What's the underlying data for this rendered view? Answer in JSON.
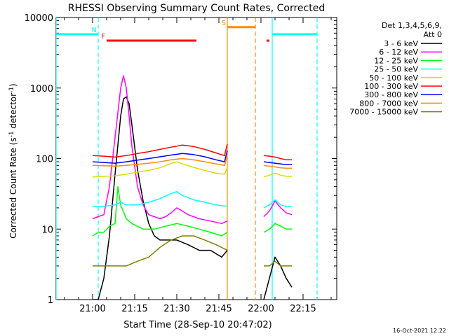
{
  "chart_data": {
    "type": "line",
    "title": "RHESSI Observing Summary Count Rates, Corrected",
    "xlabel": "Start Time (28-Sep-10 20:47:02)",
    "ylabel": "Corrected Count Rate (s",
    "ylabel_sup": "-1",
    "ylabel_mid": " detector",
    "ylabel_sup2": "-1",
    "ylabel_end": ")",
    "xscale": "linear",
    "yscale": "log",
    "xlim": [
      "20:47",
      "22:27"
    ],
    "ylim": [
      1,
      10000
    ],
    "xticks": [
      "21:00",
      "21:15",
      "21:30",
      "21:45",
      "22:00",
      "22:15"
    ],
    "yticks": [
      "1",
      "10",
      "100",
      "1000",
      "10000"
    ],
    "legend_header": [
      "Det 1,3,4,5,6,9,",
      "Att 0"
    ],
    "legend_position": "right",
    "footer_date": "16-Oct-2021 12:22",
    "series": [
      {
        "name": "3 - 6 keV",
        "color": "#000000",
        "x": [
          "21:00",
          "21:02",
          "21:04",
          "21:06",
          "21:08",
          "21:10",
          "21:11",
          "21:12",
          "21:13",
          "21:14",
          "21:16",
          "21:18",
          "21:20",
          "21:22",
          "21:24",
          "21:26",
          "21:30",
          "21:34",
          "21:38",
          "21:42",
          "21:46",
          "21:48"
        ],
        "y": [
          1,
          1,
          2,
          8,
          60,
          400,
          700,
          750,
          600,
          300,
          70,
          25,
          12,
          8,
          7,
          7,
          7,
          6,
          5,
          5,
          4,
          5
        ]
      },
      {
        "name": "3 - 6 keV",
        "color": "#000000",
        "x": [
          "22:01",
          "22:03",
          "22:05",
          "22:07",
          "22:09",
          "22:11"
        ],
        "y": [
          1,
          2,
          4,
          3,
          2,
          1.5
        ]
      },
      {
        "name": "6 - 12 keV",
        "color": "#ff00ff",
        "x": [
          "21:00",
          "21:02",
          "21:04",
          "21:06",
          "21:08",
          "21:10",
          "21:11",
          "21:12",
          "21:13",
          "21:14",
          "21:16",
          "21:18",
          "21:20",
          "21:22",
          "21:24",
          "21:26",
          "21:28",
          "21:30",
          "21:32",
          "21:34",
          "21:38",
          "21:42",
          "21:46",
          "21:48"
        ],
        "y": [
          14,
          15,
          16,
          40,
          200,
          1000,
          1500,
          1000,
          400,
          150,
          40,
          22,
          16,
          15,
          14,
          15,
          17,
          20,
          18,
          16,
          14,
          13,
          12,
          13
        ]
      },
      {
        "name": "6 - 12 keV",
        "color": "#ff00ff",
        "x": [
          "22:01",
          "22:03",
          "22:05",
          "22:07",
          "22:09",
          "22:11"
        ],
        "y": [
          15,
          18,
          25,
          20,
          17,
          16
        ]
      },
      {
        "name": "12 - 25 keV",
        "color": "#00ff00",
        "x": [
          "21:00",
          "21:02",
          "21:04",
          "21:06",
          "21:08",
          "21:09",
          "21:10",
          "21:12",
          "21:14",
          "21:18",
          "21:22",
          "21:26",
          "21:30",
          "21:34",
          "21:38",
          "21:42",
          "21:46",
          "21:48"
        ],
        "y": [
          8,
          9,
          9,
          11,
          12,
          40,
          22,
          14,
          12,
          10,
          10,
          11,
          12,
          11,
          10,
          9,
          8,
          9
        ]
      },
      {
        "name": "12 - 25 keV",
        "color": "#00ff00",
        "x": [
          "22:01",
          "22:03",
          "22:05",
          "22:07",
          "22:09",
          "22:11"
        ],
        "y": [
          9,
          10,
          12,
          11,
          10,
          10
        ]
      },
      {
        "name": "25 - 50 keV",
        "color": "#00ffff",
        "x": [
          "21:00",
          "21:04",
          "21:08",
          "21:10",
          "21:12",
          "21:16",
          "21:20",
          "21:24",
          "21:28",
          "21:30",
          "21:32",
          "21:36",
          "21:40",
          "21:44",
          "21:48"
        ],
        "y": [
          21,
          21,
          22,
          24,
          22,
          22,
          24,
          27,
          32,
          34,
          30,
          26,
          24,
          22,
          21
        ]
      },
      {
        "name": "25 - 50 keV",
        "color": "#00ffff",
        "x": [
          "22:01",
          "22:03",
          "22:05",
          "22:07",
          "22:09",
          "22:11"
        ],
        "y": [
          20,
          22,
          26,
          22,
          21,
          21
        ]
      },
      {
        "name": "50 - 100 keV",
        "color": "#dddd00",
        "x": [
          "21:00",
          "21:04",
          "21:08",
          "21:12",
          "21:16",
          "21:20",
          "21:24",
          "21:28",
          "21:30",
          "21:32",
          "21:36",
          "21:40",
          "21:44",
          "21:47",
          "21:48"
        ],
        "y": [
          55,
          56,
          57,
          60,
          64,
          68,
          74,
          85,
          90,
          84,
          75,
          68,
          62,
          60,
          75
        ]
      },
      {
        "name": "50 - 100 keV",
        "color": "#dddd00",
        "x": [
          "22:01",
          "22:03",
          "22:05",
          "22:07",
          "22:09",
          "22:11"
        ],
        "y": [
          55,
          58,
          62,
          58,
          56,
          56
        ]
      },
      {
        "name": "100 - 300 keV",
        "color": "#ff0000",
        "x": [
          "21:00",
          "21:04",
          "21:08",
          "21:12",
          "21:16",
          "21:20",
          "21:24",
          "21:28",
          "21:32",
          "21:36",
          "21:40",
          "21:44",
          "21:47",
          "21:48"
        ],
        "y": [
          110,
          108,
          105,
          110,
          118,
          125,
          135,
          145,
          155,
          148,
          135,
          120,
          110,
          160
        ]
      },
      {
        "name": "100 - 300 keV",
        "color": "#ff0000",
        "x": [
          "22:01",
          "22:03",
          "22:05",
          "22:07",
          "22:09",
          "22:11"
        ],
        "y": [
          110,
          108,
          105,
          100,
          96,
          96
        ]
      },
      {
        "name": "300 - 800 keV",
        "color": "#0000ff",
        "x": [
          "21:00",
          "21:04",
          "21:08",
          "21:12",
          "21:16",
          "21:20",
          "21:24",
          "21:28",
          "21:32",
          "21:36",
          "21:40",
          "21:44",
          "21:47",
          "21:48"
        ],
        "y": [
          90,
          88,
          86,
          90,
          95,
          100,
          106,
          112,
          118,
          114,
          106,
          96,
          90,
          130
        ]
      },
      {
        "name": "300 - 800 keV",
        "color": "#0000ff",
        "x": [
          "22:01",
          "22:03",
          "22:05",
          "22:07",
          "22:09",
          "22:11"
        ],
        "y": [
          90,
          88,
          86,
          84,
          82,
          82
        ]
      },
      {
        "name": "800 - 7000 keV",
        "color": "#ff8c00",
        "x": [
          "21:00",
          "21:04",
          "21:08",
          "21:12",
          "21:16",
          "21:20",
          "21:24",
          "21:28",
          "21:32",
          "21:36",
          "21:40",
          "21:44",
          "21:47",
          "21:48"
        ],
        "y": [
          80,
          79,
          78,
          80,
          83,
          86,
          90,
          96,
          100,
          96,
          90,
          84,
          80,
          110
        ]
      },
      {
        "name": "800 - 7000 keV",
        "color": "#ff8c00",
        "x": [
          "22:01",
          "22:03",
          "22:05",
          "22:07",
          "22:09",
          "22:11"
        ],
        "y": [
          80,
          78,
          76,
          74,
          73,
          73
        ]
      },
      {
        "name": "7000 - 15000 keV",
        "color": "#808000",
        "x": [
          "21:00",
          "21:04",
          "21:08",
          "21:12",
          "21:16",
          "21:20",
          "21:24",
          "21:28",
          "21:32",
          "21:36",
          "21:40",
          "21:44",
          "21:48"
        ],
        "y": [
          3,
          3,
          3,
          3,
          3.5,
          4,
          5.5,
          7,
          8,
          8,
          7,
          6,
          5
        ]
      },
      {
        "name": "7000 - 15000 keV",
        "color": "#808000",
        "x": [
          "22:01",
          "22:03",
          "22:05",
          "22:07",
          "22:09",
          "22:11"
        ],
        "y": [
          3,
          3,
          3.5,
          3,
          3,
          3
        ]
      }
    ],
    "vlines": [
      {
        "x": "20:47",
        "color": "#00ffff",
        "style": "solid"
      },
      {
        "x": "21:02",
        "color": "#00ffff",
        "style": "dashed"
      },
      {
        "x": "21:48",
        "color": "#ff8c00",
        "style": "solid"
      },
      {
        "x": "21:58",
        "color": "#ff8c00",
        "style": "dashed"
      },
      {
        "x": "22:04",
        "color": "#00ffff",
        "style": "solid"
      },
      {
        "x": "22:20",
        "color": "#00ffff",
        "style": "dashed"
      }
    ],
    "flag_bars": [
      {
        "label": "",
        "color": "#00ffff",
        "x0": "20:47",
        "x1": "21:02",
        "y": 5800
      },
      {
        "label": "N",
        "color": "#00ffff",
        "x0": "21:02",
        "x1": "21:02",
        "y": 5800
      },
      {
        "label": "",
        "color": "#00ffff",
        "x0": "22:04",
        "x1": "22:20",
        "y": 5800
      },
      {
        "label": "F",
        "color": "#ff0000",
        "x0": "21:05",
        "x1": "21:37",
        "y": 4700
      },
      {
        "label": "",
        "color": "#ff0000",
        "x0": "22:02",
        "x1": "22:03",
        "y": 4700
      },
      {
        "label": "S",
        "color": "#ff8c00",
        "x0": "21:48",
        "x1": "21:58",
        "y": 7300
      }
    ]
  }
}
